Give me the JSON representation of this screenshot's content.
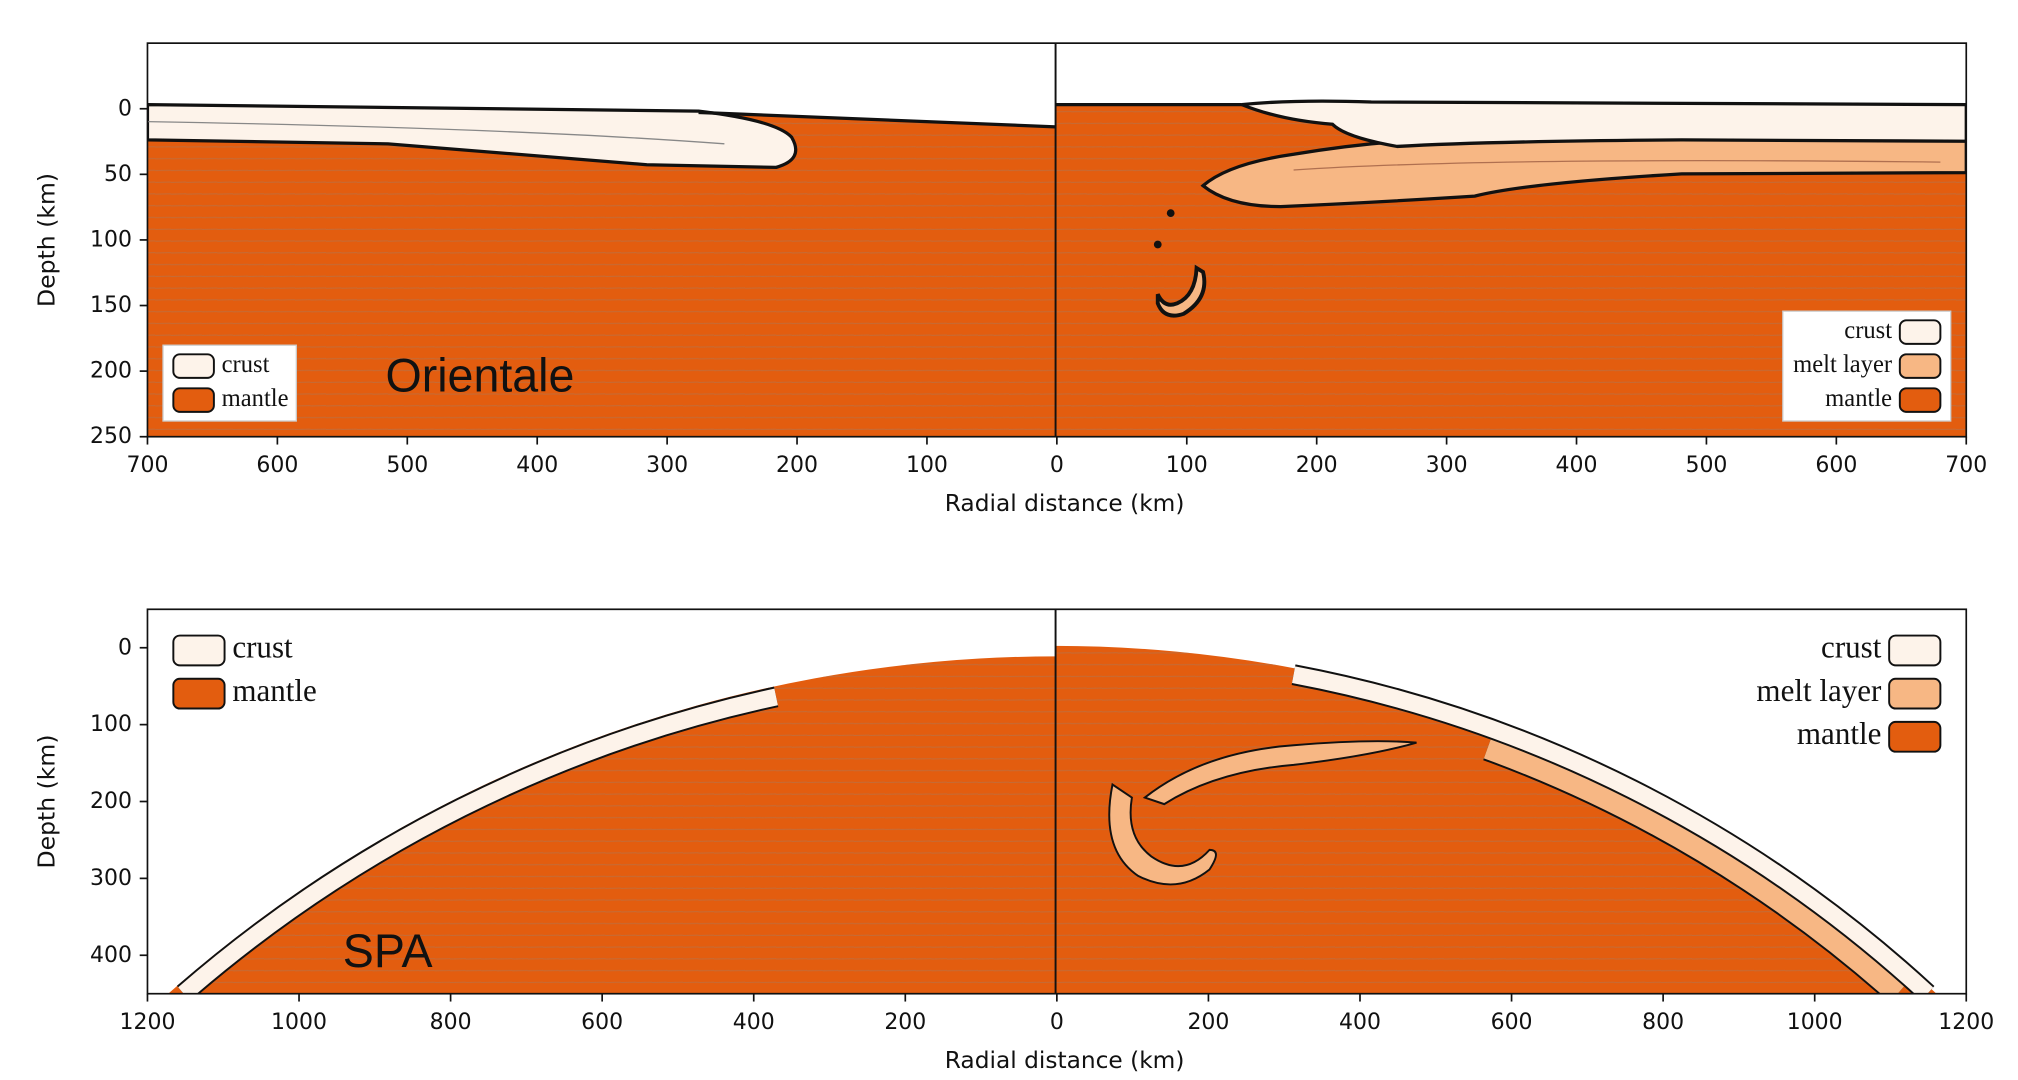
{
  "chart_data": [
    {
      "type": "cross-section",
      "annotation": "Orientale",
      "xlabel": "Radial distance (km)",
      "ylabel": "Depth (km)",
      "xlim": [
        -700,
        700
      ],
      "xticks": [
        {
          "value": -700,
          "label": "700"
        },
        {
          "value": -600,
          "label": "600"
        },
        {
          "value": -500,
          "label": "500"
        },
        {
          "value": -400,
          "label": "400"
        },
        {
          "value": -300,
          "label": "300"
        },
        {
          "value": -200,
          "label": "200"
        },
        {
          "value": -100,
          "label": "100"
        },
        0,
        100,
        200,
        300,
        400,
        500,
        600,
        700
      ],
      "ylim": [
        250,
        -50
      ],
      "yticks": [
        0,
        50,
        100,
        150,
        200,
        250
      ],
      "legends": [
        {
          "corner": "lower left",
          "frame": true,
          "markerfirst": true,
          "items": [
            {
              "name": "crust",
              "color": "#fdf3ea"
            },
            {
              "name": "mantle",
              "color": "#e35d0f"
            }
          ]
        },
        {
          "corner": "lower right",
          "frame": true,
          "markerfirst": false,
          "items": [
            {
              "name": "crust",
              "color": "#fdf3ea"
            },
            {
              "name": "melt layer",
              "color": "#f7b784"
            },
            {
              "name": "mantle",
              "color": "#e35d0f"
            }
          ]
        }
      ]
    },
    {
      "type": "cross-section",
      "annotation": "SPA",
      "xlabel": "Radial distance (km)",
      "ylabel": "Depth (km)",
      "xlim": [
        -1200,
        1200
      ],
      "xticks": [
        {
          "value": -1200,
          "label": "1200"
        },
        {
          "value": -1000,
          "label": "1000"
        },
        {
          "value": -800,
          "label": "800"
        },
        {
          "value": -600,
          "label": "600"
        },
        {
          "value": -400,
          "label": "400"
        },
        {
          "value": -200,
          "label": "200"
        },
        0,
        200,
        400,
        600,
        800,
        1000,
        1200
      ],
      "ylim": [
        450,
        -50
      ],
      "yticks": [
        0,
        100,
        200,
        300,
        400
      ],
      "legends": [
        {
          "corner": "upper left",
          "frame": false,
          "markerfirst": true,
          "items": [
            {
              "name": "crust",
              "color": "#fdf3ea"
            },
            {
              "name": "mantle",
              "color": "#e35d0f"
            }
          ]
        },
        {
          "corner": "upper right",
          "frame": false,
          "markerfirst": false,
          "items": [
            {
              "name": "crust",
              "color": "#fdf3ea"
            },
            {
              "name": "melt layer",
              "color": "#f7b784"
            },
            {
              "name": "mantle",
              "color": "#e35d0f"
            }
          ]
        }
      ]
    }
  ]
}
